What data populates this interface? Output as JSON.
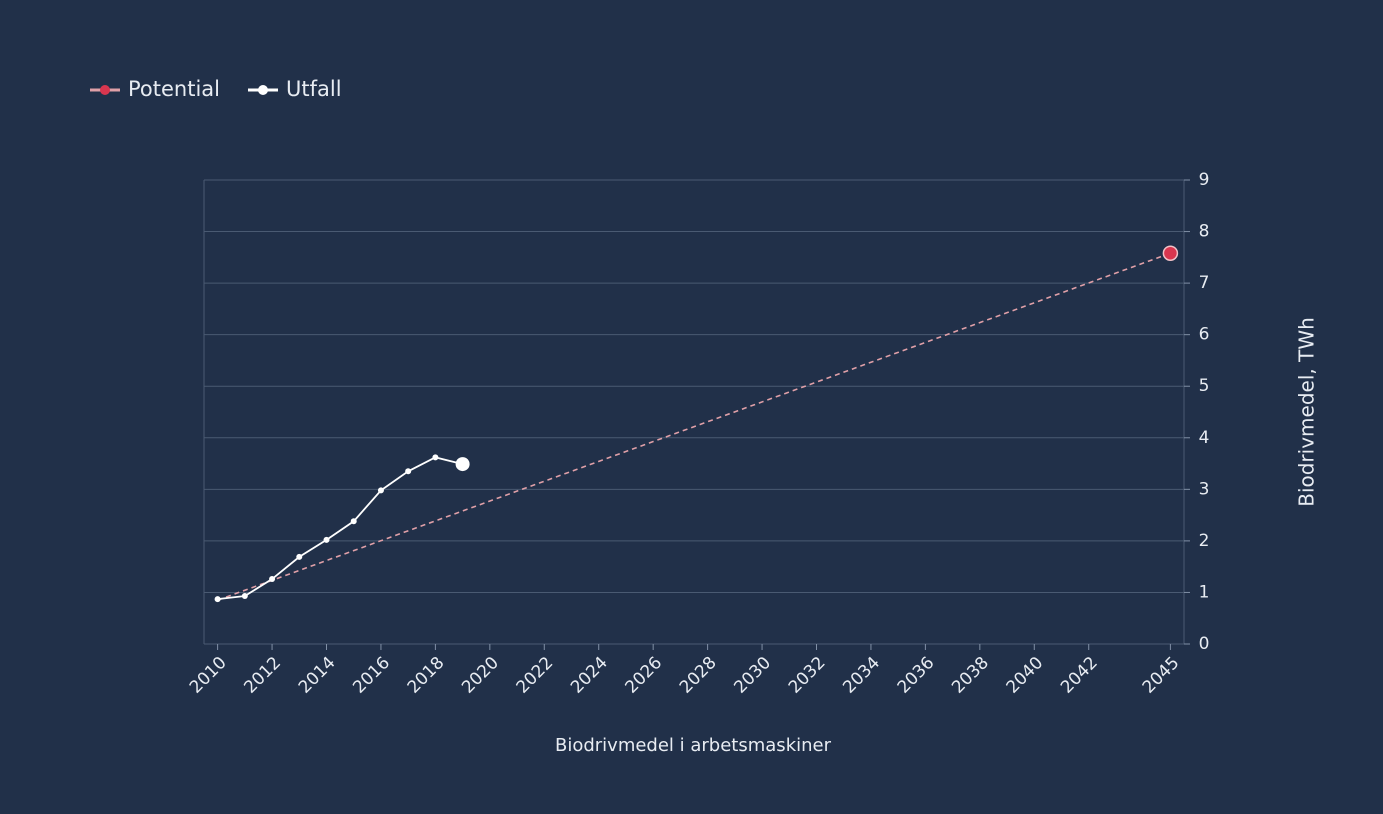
{
  "chart_data": {
    "type": "line",
    "x_label": "Biodrivmedel i arbetsmaskiner",
    "y_label": "Biodrivmedel, TWh",
    "series": [
      {
        "name": "Potential",
        "color": "#e0a0a8",
        "marker_color": "#d9364f",
        "dashed": true,
        "x": [
          2010,
          2045
        ],
        "values": [
          0.85,
          7.58
        ]
      },
      {
        "name": "Utfall",
        "color": "#ffffff",
        "marker_color": "#ffffff",
        "dashed": false,
        "x": [
          2010,
          2011,
          2012,
          2013,
          2014,
          2015,
          2016,
          2017,
          2018,
          2019
        ],
        "values": [
          0.87,
          0.93,
          1.26,
          1.69,
          2.02,
          2.38,
          2.98,
          3.35,
          3.62,
          3.49
        ]
      }
    ],
    "xlim": [
      2009.5,
      2045.5
    ],
    "xticks": [
      2010,
      2012,
      2014,
      2016,
      2018,
      2020,
      2022,
      2024,
      2026,
      2028,
      2030,
      2032,
      2034,
      2036,
      2038,
      2040,
      2042,
      2045
    ],
    "ylim": [
      0,
      9
    ],
    "yticks": [
      0,
      1,
      2,
      3,
      4,
      5,
      6,
      7,
      8,
      9
    ],
    "grid": true,
    "y_axis_side": "right",
    "legend": "top-left"
  }
}
